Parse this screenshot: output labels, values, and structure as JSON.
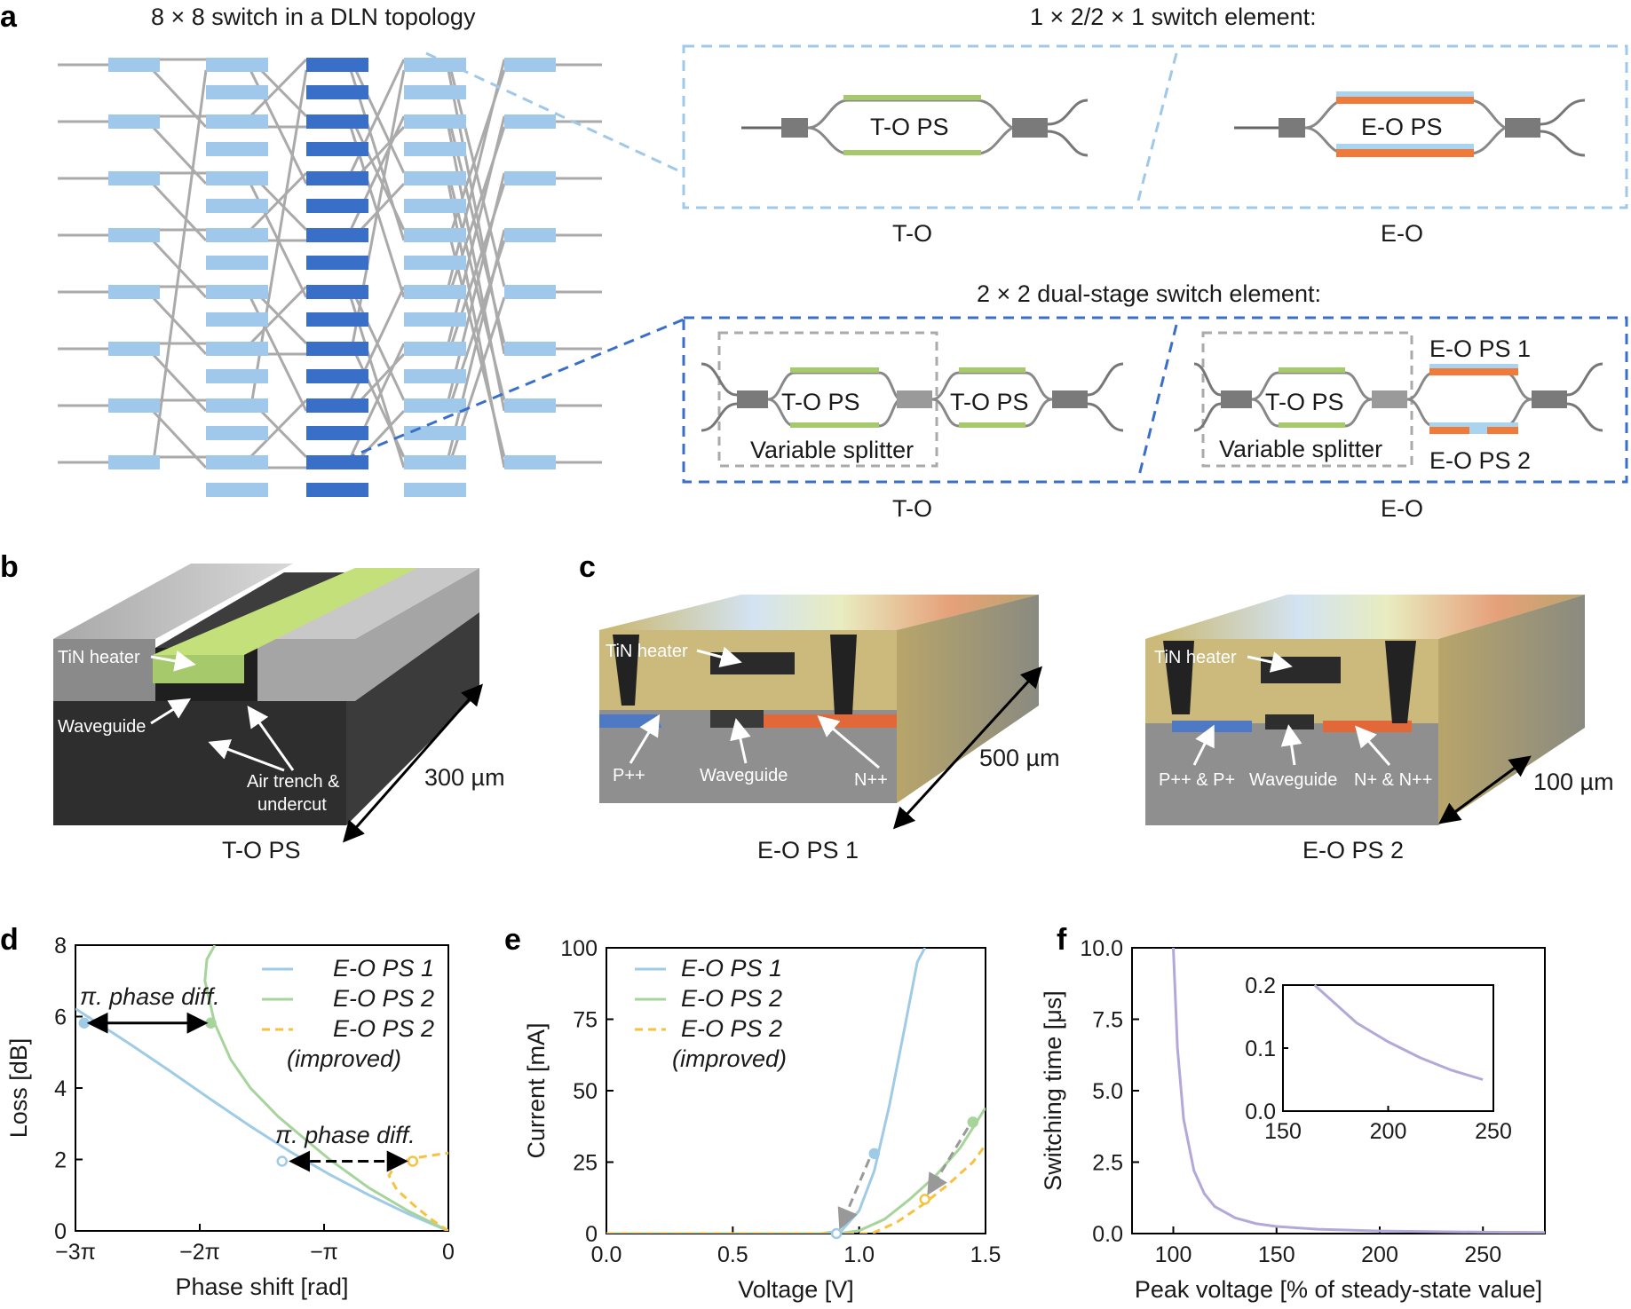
{
  "panel_a": {
    "letter": "a",
    "topology_title": "8 × 8 switch in a DLN topology",
    "element1_title": "1 × 2/2 × 1 switch element:",
    "element2_title": "2 × 2 dual-stage switch element:",
    "to_ps": "T-O PS",
    "eo_ps": "E-O PS",
    "eo_ps1": "E-O PS 1",
    "eo_ps2": "E-O PS 2",
    "variable_splitter": "Variable splitter",
    "label_to": "T-O",
    "label_eo": "E-O"
  },
  "panel_b": {
    "letter": "b",
    "tin_heater": "TiN heater",
    "waveguide": "Waveguide",
    "air_trench_1": "Air trench &",
    "air_trench_2": "undercut",
    "length": "300 µm",
    "caption": "T-O PS"
  },
  "panel_c": {
    "letter": "c",
    "left": {
      "tin_heater": "TiN heater",
      "p": "P++",
      "waveguide": "Waveguide",
      "n": "N++",
      "length": "500 µm",
      "caption": "E-O PS 1"
    },
    "right": {
      "tin_heater": "TiN heater",
      "p": "P++ & P+",
      "waveguide": "Waveguide",
      "n": "N+ & N++",
      "length": "100 µm",
      "caption": "E-O PS 2"
    }
  },
  "colors": {
    "eo1": "#9fcbe6",
    "eo2": "#a6d49a",
    "eo2_improved": "#f5c242",
    "inset": "#b3a8d8",
    "light_blue": "#9fc8ea",
    "dark_blue": "#3a6fc9",
    "heater_green": "#a5c96b",
    "eo_orange": "#f07a3a"
  },
  "chart_data": [
    {
      "panel": "d",
      "type": "line",
      "xlabel": "Phase shift [rad]",
      "ylabel": "Loss [dB]",
      "xlim": [
        -9.42,
        0
      ],
      "ylim": [
        0,
        8
      ],
      "xticks": [
        -9.42,
        -6.28,
        -3.14,
        0
      ],
      "xtick_labels": [
        "−3π",
        "−2π",
        "−π",
        "0"
      ],
      "yticks": [
        0,
        2,
        4,
        6,
        8
      ],
      "ytick_labels": [
        "0",
        "2",
        "4",
        "6",
        "8"
      ],
      "annotation": "π. phase diff.",
      "legend": [
        "E-O PS 1",
        "E-O PS 2",
        "E-O PS 2",
        "(improved)"
      ],
      "series": [
        {
          "name": "E-O PS 1",
          "x": [
            0,
            -1.0,
            -2.0,
            -3.0,
            -4.0,
            -5.0,
            -6.0,
            -7.0,
            -8.0,
            -9.0,
            -9.42
          ],
          "y": [
            0,
            0.47,
            1.0,
            1.58,
            2.22,
            2.93,
            3.68,
            4.45,
            5.2,
            5.92,
            6.22
          ]
        },
        {
          "name": "E-O PS 2",
          "x": [
            0,
            -1.0,
            -2.0,
            -3.0,
            -3.6,
            -4.3,
            -5.0,
            -5.5,
            -5.9,
            -6.15,
            -6.1,
            -5.9
          ],
          "y": [
            0,
            0.55,
            1.2,
            2.0,
            2.55,
            3.2,
            4.0,
            4.8,
            5.8,
            7.0,
            7.6,
            8.0
          ]
        },
        {
          "name": "E-O PS 2",
          "x": [
            0,
            -0.4,
            -0.8,
            -1.3,
            -1.5,
            -1.3,
            -0.8,
            -0.2,
            0
          ],
          "y": [
            0,
            0.3,
            0.65,
            1.15,
            1.55,
            1.9,
            2.05,
            2.15,
            2.18
          ]
        }
      ]
    },
    {
      "panel": "e",
      "type": "line",
      "xlabel": "Voltage [V]",
      "ylabel": "Current [mA]",
      "xlim": [
        0,
        1.5
      ],
      "ylim": [
        0,
        100
      ],
      "xticks": [
        0,
        0.5,
        1.0,
        1.5
      ],
      "xtick_labels": [
        "0.0",
        "0.5",
        "1.0",
        "1.5"
      ],
      "yticks": [
        0,
        25,
        50,
        75,
        100
      ],
      "ytick_labels": [
        "0",
        "25",
        "50",
        "75",
        "100"
      ],
      "legend": [
        "E-O PS 1",
        "E-O PS 2",
        "E-O PS 2",
        "(improved)"
      ],
      "series": [
        {
          "name": "E-O PS 1",
          "x": [
            0,
            0.85,
            0.93,
            1.0,
            1.06,
            1.12,
            1.18,
            1.23,
            1.26
          ],
          "y": [
            0,
            0,
            1,
            8,
            22,
            45,
            72,
            95,
            100
          ]
        },
        {
          "name": "E-O PS 2",
          "x": [
            0,
            0.92,
            1.0,
            1.1,
            1.2,
            1.3,
            1.4,
            1.5
          ],
          "y": [
            0,
            0,
            1,
            5,
            12,
            20,
            30,
            44
          ]
        },
        {
          "name": "E-O PS 2",
          "x": [
            0,
            1.05,
            1.15,
            1.25,
            1.35,
            1.45,
            1.5
          ],
          "y": [
            0,
            0,
            4,
            10,
            17,
            25,
            31
          ]
        }
      ]
    },
    {
      "panel": "f",
      "type": "line",
      "xlabel": "Peak voltage [% of steady-state value]",
      "ylabel": "Switching time [μs]",
      "xlim": [
        80,
        280
      ],
      "ylim": [
        0,
        10
      ],
      "xticks": [
        100,
        150,
        200,
        250
      ],
      "xtick_labels": [
        "100",
        "150",
        "200",
        "250"
      ],
      "yticks": [
        0,
        2.5,
        5,
        7.5,
        10
      ],
      "ytick_labels": [
        "0.0",
        "2.5",
        "5.0",
        "7.5",
        "10.0"
      ],
      "series": [
        {
          "name": "",
          "x": [
            100,
            102,
            105,
            110,
            115,
            120,
            130,
            140,
            150,
            170,
            200,
            250,
            280
          ],
          "y": [
            10,
            6.5,
            4.0,
            2.2,
            1.4,
            0.95,
            0.55,
            0.35,
            0.25,
            0.15,
            0.09,
            0.05,
            0.04
          ]
        }
      ],
      "inset": {
        "xlim": [
          150,
          250
        ],
        "ylim": [
          0,
          0.2
        ],
        "xticks": [
          150,
          200,
          250
        ],
        "xtick_labels": [
          "150",
          "200",
          "250"
        ],
        "yticks": [
          0,
          0.1,
          0.2
        ],
        "ytick_labels": [
          "0.0",
          "0.1",
          "0.2"
        ],
        "x": [
          165,
          175,
          185,
          200,
          215,
          230,
          245
        ],
        "y": [
          0.2,
          0.17,
          0.14,
          0.11,
          0.085,
          0.065,
          0.05
        ]
      }
    }
  ]
}
